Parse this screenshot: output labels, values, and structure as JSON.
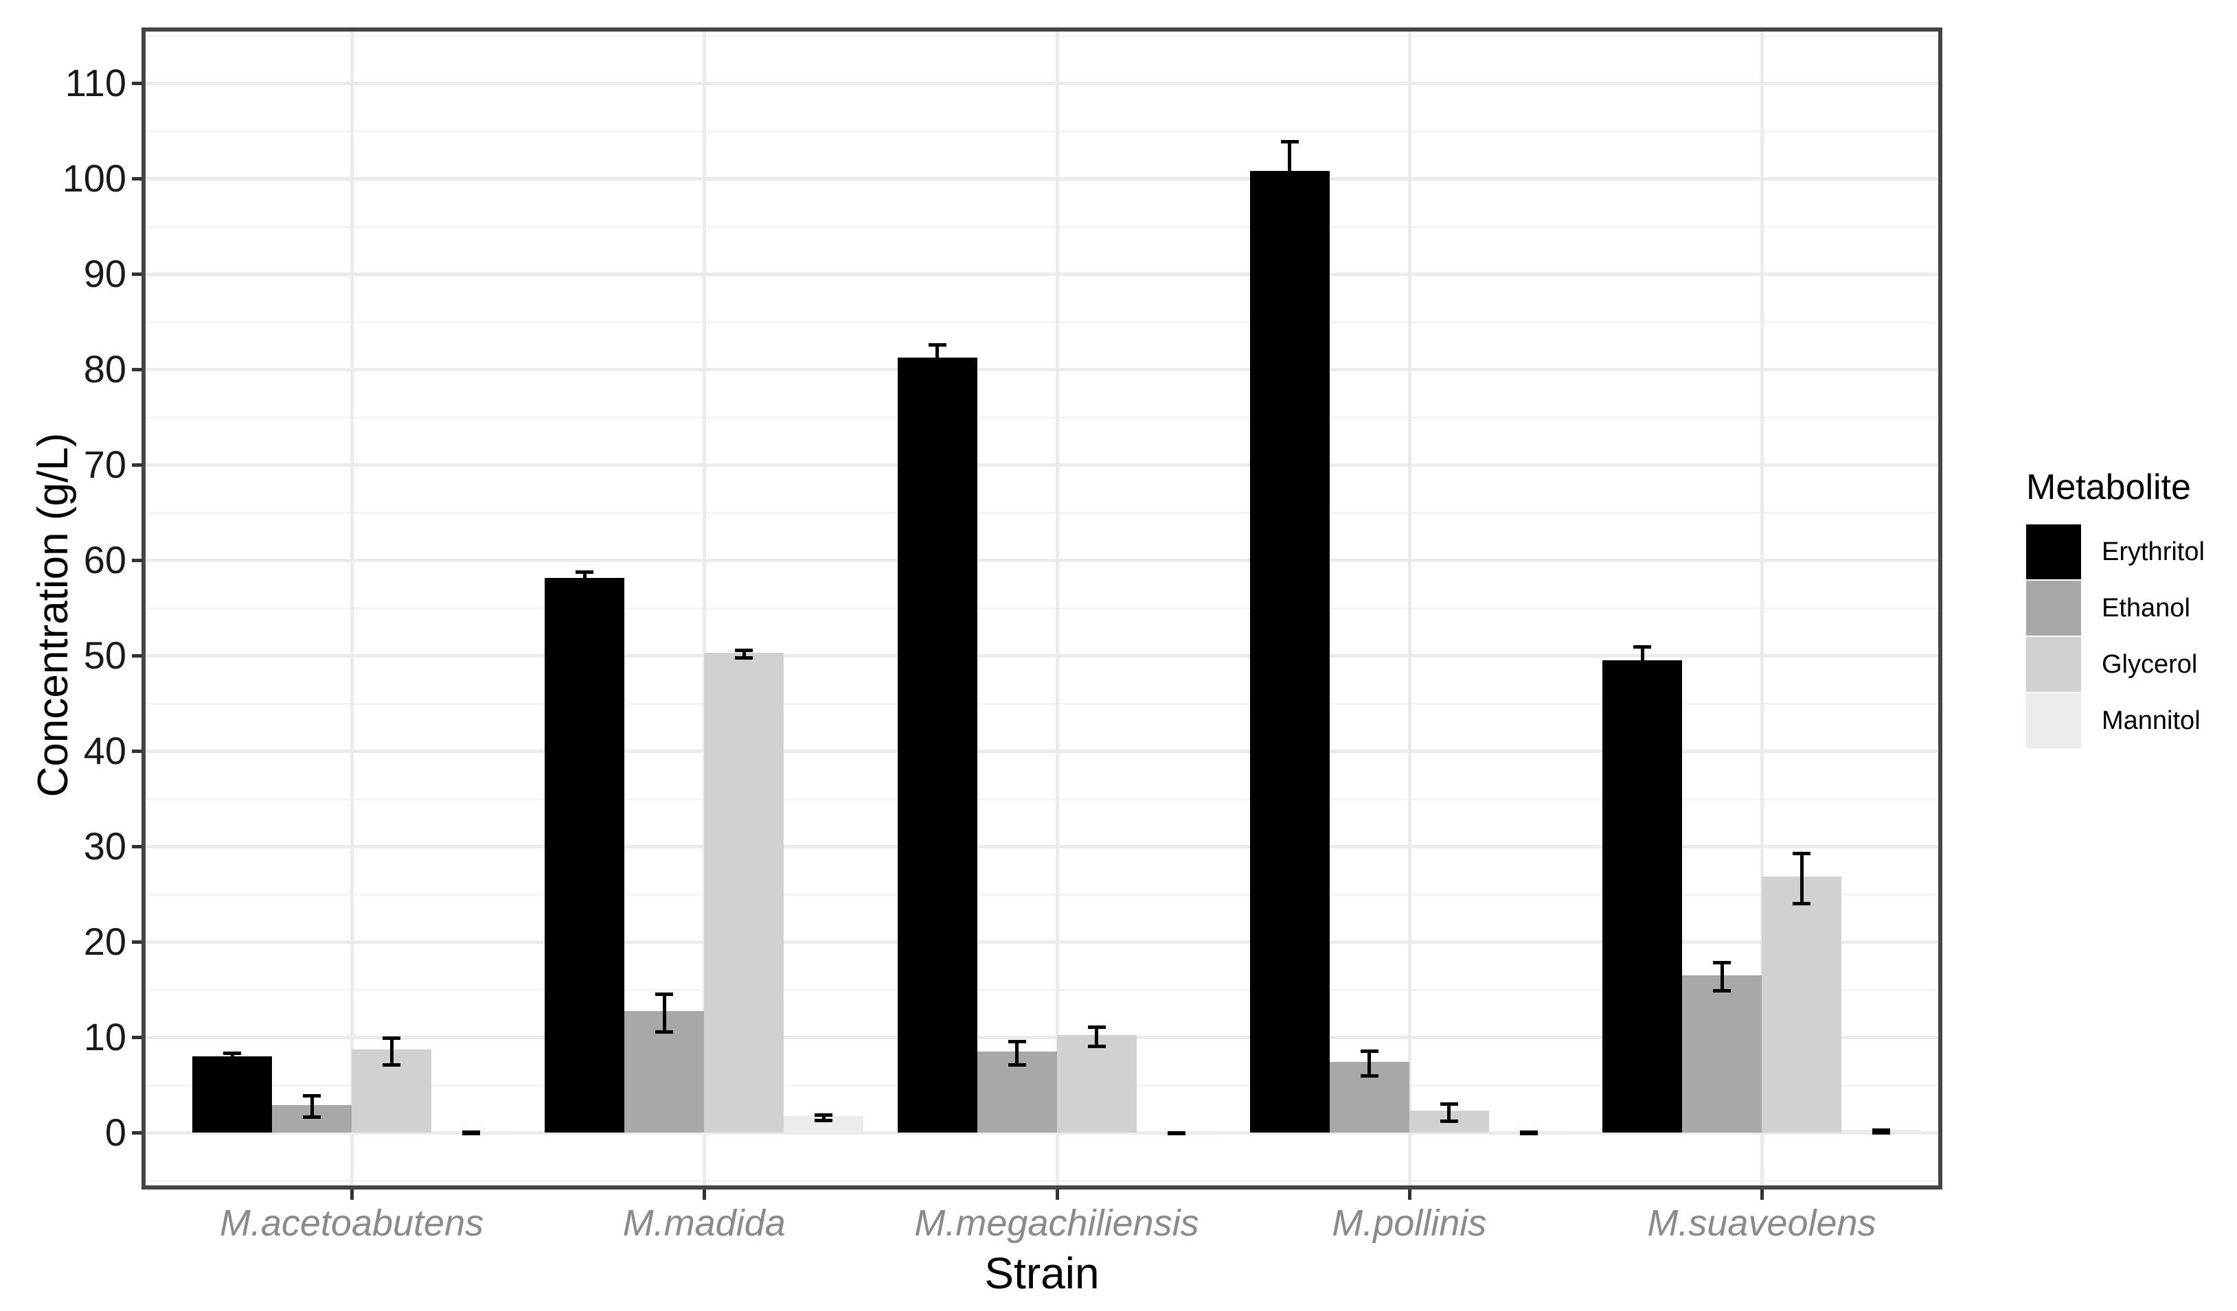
{
  "chart_data": {
    "type": "bar",
    "title": "",
    "xlabel": "Strain",
    "ylabel": "Concentration (g/L)",
    "categories": [
      "M.acetoabutens",
      "M.madida",
      "M.megachiliensis",
      "M.pollinis",
      "M.suaveolens"
    ],
    "series": [
      {
        "name": "Erythritol",
        "color": "#000000",
        "values": [
          8.0,
          58.1,
          81.2,
          100.8,
          49.5
        ],
        "errors": [
          0.5,
          0.8,
          1.5,
          3.2,
          1.6
        ]
      },
      {
        "name": "Ethanol",
        "color": "#a8a8a8",
        "values": [
          2.9,
          12.7,
          8.5,
          7.4,
          16.5
        ],
        "errors": [
          1.1,
          2.0,
          1.2,
          1.3,
          1.5
        ]
      },
      {
        "name": "Glycerol",
        "color": "#d1d1d1",
        "values": [
          8.7,
          50.3,
          10.2,
          2.3,
          26.8
        ],
        "errors": [
          1.4,
          0.4,
          1.0,
          0.9,
          2.6
        ]
      },
      {
        "name": "Mannitol",
        "color": "#ececec",
        "values": [
          0.12,
          1.75,
          0.1,
          0.12,
          0.3
        ],
        "errors": [
          0.08,
          0.3,
          0.06,
          0.08,
          0.15
        ]
      }
    ],
    "ylim": [
      0,
      110
    ],
    "yticks": [
      0,
      10,
      20,
      30,
      40,
      50,
      60,
      70,
      80,
      90,
      100,
      110
    ],
    "minor_tick_step": 5,
    "grid": "major and minor horizontal, major vertical at group centers",
    "error_bars": true,
    "legend_title": "Metabolite",
    "legend_position": "right",
    "colors": {
      "panel_border": "#454545",
      "grid_major": "#ebebeb",
      "grid_minor": "#f4f4f4",
      "axis_tick": "#333333",
      "y_tick_label": "#1a1a1a",
      "x_tick_label": "#8a8a8a",
      "axis_title": "#000000",
      "error_bar": "#000000"
    }
  }
}
